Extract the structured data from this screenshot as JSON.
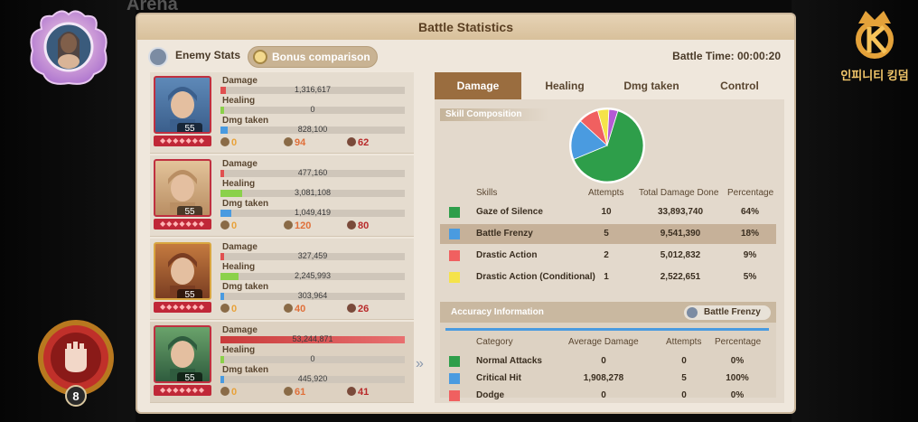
{
  "background_title": "Arena",
  "panel": {
    "title": "Battle Statistics",
    "enemy_stats_label": "Enemy Stats",
    "bonus_comparison_label": "Bonus comparison",
    "battle_time": "Battle Time: 00:00:20"
  },
  "logo_text": "인피니티 킹덤",
  "emblem_level": "8",
  "stat_labels": {
    "damage": "Damage",
    "healing": "Healing",
    "dmg_taken": "Dmg taken"
  },
  "heroes": [
    {
      "level": "55",
      "damage": "1,316,617",
      "healing": "0",
      "dmg_taken": "828,100",
      "damage_frac": 0.03,
      "healing_frac": 0.0,
      "dmg_taken_frac": 0.02,
      "c1": "0",
      "c2": "94",
      "c3": "62",
      "portrait": "blue"
    },
    {
      "level": "55",
      "damage": "477,160",
      "healing": "3,081,108",
      "dmg_taken": "1,049,419",
      "damage_frac": 0.02,
      "healing_frac": 0.06,
      "dmg_taken_frac": 0.03,
      "c1": "0",
      "c2": "120",
      "c3": "80",
      "portrait": "beige"
    },
    {
      "level": "55",
      "damage": "327,459",
      "healing": "2,245,993",
      "dmg_taken": "303,964",
      "damage_frac": 0.02,
      "healing_frac": 0.05,
      "dmg_taken_frac": 0.01,
      "c1": "0",
      "c2": "40",
      "c3": "26",
      "portrait": "brown"
    },
    {
      "level": "55",
      "damage": "53,244,871",
      "healing": "0",
      "dmg_taken": "445,920",
      "damage_frac": 1.0,
      "healing_frac": 0.0,
      "dmg_taken_frac": 0.01,
      "c1": "0",
      "c2": "61",
      "c3": "41",
      "portrait": "green"
    }
  ],
  "tabs": [
    "Damage",
    "Healing",
    "Dmg taken",
    "Control"
  ],
  "skill_section_label": "Skill Composition",
  "skill_headers": {
    "skills": "Skills",
    "attempts": "Attempts",
    "total": "Total Damage Done",
    "percentage": "Percentage"
  },
  "skills": [
    {
      "name": "Gaze of Silence",
      "attempts": "10",
      "total": "33,893,740",
      "percentage": "64%",
      "color": "#2e9e4a"
    },
    {
      "name": "Battle Frenzy",
      "attempts": "5",
      "total": "9,541,390",
      "percentage": "18%",
      "color": "#4a9be0"
    },
    {
      "name": "Drastic Action",
      "attempts": "2",
      "total": "5,012,832",
      "percentage": "9%",
      "color": "#f06060"
    },
    {
      "name": "Drastic Action (Conditional)",
      "attempts": "1",
      "total": "2,522,651",
      "percentage": "5%",
      "color": "#f5e34a"
    }
  ],
  "chart_data": {
    "type": "pie",
    "slices": [
      {
        "label": "Gaze of Silence",
        "value": 64,
        "color": "#2e9e4a"
      },
      {
        "label": "Battle Frenzy",
        "value": 18,
        "color": "#4a9be0"
      },
      {
        "label": "Drastic Action",
        "value": 9,
        "color": "#f06060"
      },
      {
        "label": "Drastic Action (Conditional)",
        "value": 5,
        "color": "#f5e34a"
      },
      {
        "label": "",
        "value": 4,
        "color": "#b45ad6"
      }
    ]
  },
  "accuracy": {
    "title": "Accuracy Information",
    "selected_skill": "Battle Frenzy",
    "headers": {
      "category": "Category",
      "avg": "Average Damage",
      "attempts": "Attempts",
      "percentage": "Percentage"
    },
    "rows": [
      {
        "category": "Normal Attacks",
        "avg": "0",
        "attempts": "0",
        "percentage": "0%",
        "color": "#2e9e4a"
      },
      {
        "category": "Critical Hit",
        "avg": "1,908,278",
        "attempts": "5",
        "percentage": "100%",
        "color": "#4a9be0"
      },
      {
        "category": "Dodge",
        "avg": "0",
        "attempts": "0",
        "percentage": "0%",
        "color": "#f06060"
      }
    ]
  }
}
